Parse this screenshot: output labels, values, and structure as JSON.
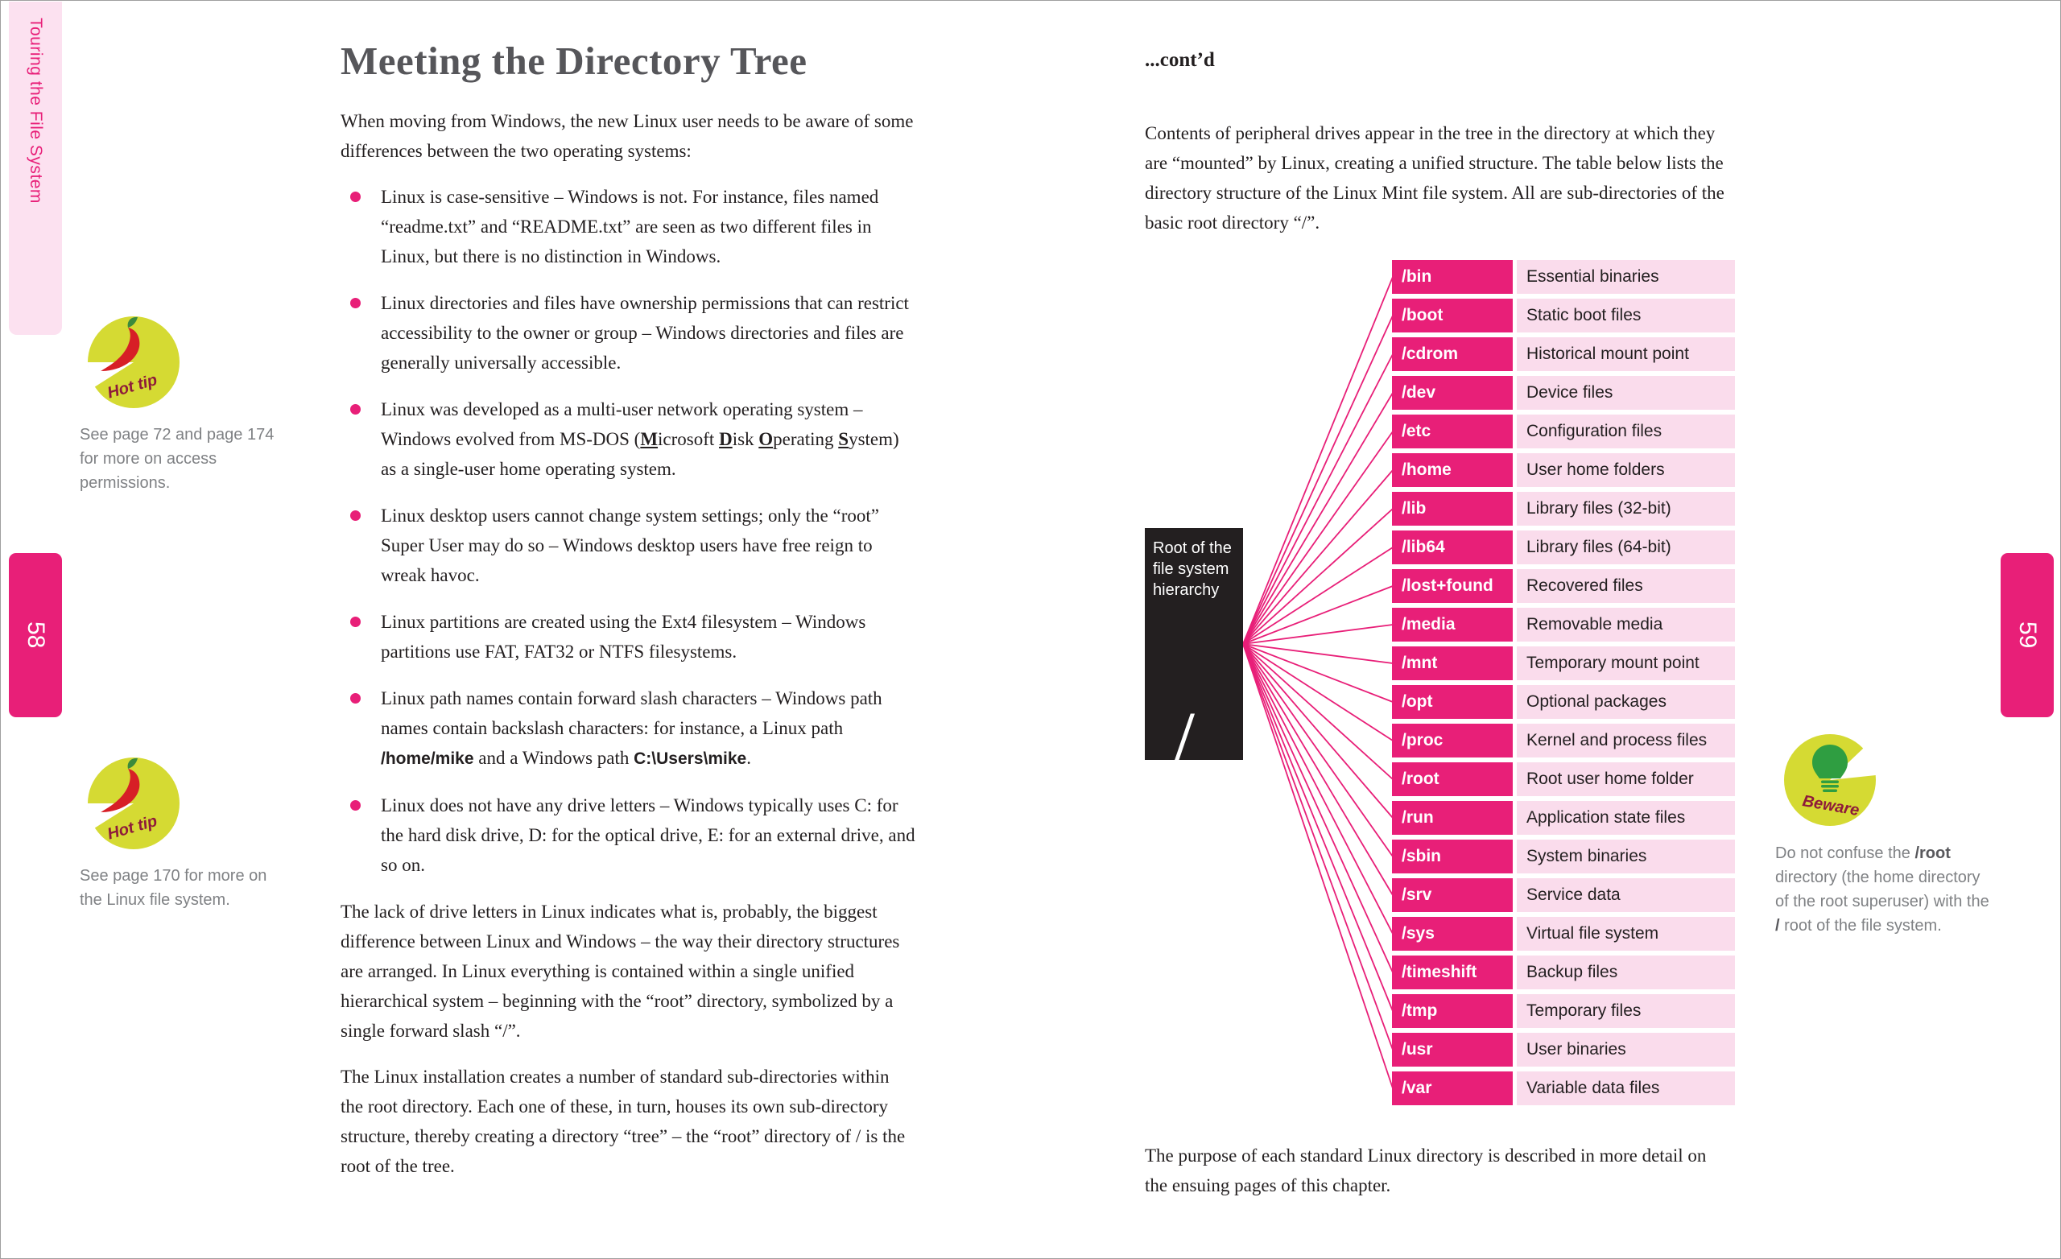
{
  "theme": {
    "accent_pink": "#e81f78",
    "light_pink": "#fadcec",
    "tab_pink": "#fce1f0",
    "box_black": "#231f20",
    "icon_yellow": "#d5da33",
    "pepper_red": "#d71f26",
    "note_gray": "#7f8184"
  },
  "edges": {
    "chapter_tab": "Touring the File System",
    "left_page_number": "58",
    "right_page_number": "59"
  },
  "left_page": {
    "title": "Meeting the Directory Tree",
    "intro": "When moving from Windows, the new Linux user needs to be aware of some differences between the two operating systems:",
    "bullets": [
      "Linux is case-sensitive – Windows is not. For instance, files named “readme.txt” and “README.txt” are seen as two different files in Linux, but there is no distinction in Windows.",
      "Linux directories and files have ownership permissions that can restrict accessibility to the owner or group – Windows directories and files are generally universally accessible.",
      "Linux was developed as a multi-user network operating system – Windows evolved from MS-DOS (__M__icrosoft __D__isk __O__perating __S__ystem) as a single-user home operating system.",
      "Linux desktop users cannot change system settings; only the “root” Super User may do so – Windows desktop users have free reign to wreak havoc.",
      "Linux partitions are created using the Ext4 filesystem – Windows partitions use FAT, FAT32 or NTFS filesystems.",
      "Linux path names contain forward slash characters – Windows path names contain backslash characters: for instance, a Linux path **/home/mike** and a Windows path **C:\\Users\\mike**.",
      "Linux does not have any drive letters – Windows typically uses C: for the hard disk drive, D: for the optical drive, E: for an external drive, and so on."
    ],
    "para1": "The lack of drive letters in Linux indicates what is, probably, the biggest difference between Linux and Windows – the way their directory structures are arranged. In Linux everything is contained within a single unified hierarchical system – beginning with the “root” directory, symbolized by a single forward slash “/”.",
    "para2": "The Linux installation creates a number of standard sub-directories within the root directory. Each one of these, in turn, houses its own sub-directory structure, thereby creating a directory “tree” – the “root” directory of / is the root of the tree.",
    "tips": [
      {
        "icon": "chili-pepper-icon",
        "label": "Hot tip",
        "text": "See page 72 and page 174 for more on access permissions."
      },
      {
        "icon": "chili-pepper-icon",
        "label": "Hot tip",
        "text": "See page 170 for more on the Linux file system."
      }
    ]
  },
  "right_page": {
    "contd": "...cont’d",
    "intro": "Contents of peripheral drives appear in the tree in the directory at which they are “mounted” by Linux, creating a unified structure. The table below lists the directory structure of the Linux Mint file system. All are sub-directories of the basic root directory “/”.",
    "root_box": {
      "label": "Root of the file system hierarchy",
      "slash": "/"
    },
    "directories": [
      {
        "name": "/bin",
        "desc": "Essential binaries"
      },
      {
        "name": "/boot",
        "desc": "Static boot files"
      },
      {
        "name": "/cdrom",
        "desc": "Historical mount point"
      },
      {
        "name": "/dev",
        "desc": "Device files"
      },
      {
        "name": "/etc",
        "desc": "Configuration files"
      },
      {
        "name": "/home",
        "desc": "User home folders"
      },
      {
        "name": "/lib",
        "desc": "Library files (32-bit)"
      },
      {
        "name": "/lib64",
        "desc": "Library files (64-bit)"
      },
      {
        "name": "/lost+found",
        "desc": "Recovered files"
      },
      {
        "name": "/media",
        "desc": "Removable media"
      },
      {
        "name": "/mnt",
        "desc": "Temporary mount point"
      },
      {
        "name": "/opt",
        "desc": "Optional packages"
      },
      {
        "name": "/proc",
        "desc": "Kernel and process files"
      },
      {
        "name": "/root",
        "desc": "Root user home folder"
      },
      {
        "name": "/run",
        "desc": "Application state files"
      },
      {
        "name": "/sbin",
        "desc": "System binaries"
      },
      {
        "name": "/srv",
        "desc": "Service data"
      },
      {
        "name": "/sys",
        "desc": "Virtual file system"
      },
      {
        "name": "/timeshift",
        "desc": "Backup files"
      },
      {
        "name": "/tmp",
        "desc": "Temporary files"
      },
      {
        "name": "/usr",
        "desc": "User binaries"
      },
      {
        "name": "/var",
        "desc": "Variable data files"
      }
    ],
    "outro": "The purpose of each standard Linux directory is described in more detail on the ensuing pages of this chapter.",
    "beware": {
      "icon": "light-bulb-icon",
      "label": "Beware",
      "text": "Do not confuse the **/root** directory (the home directory of the root superuser) with the **/** root of the file system."
    }
  }
}
